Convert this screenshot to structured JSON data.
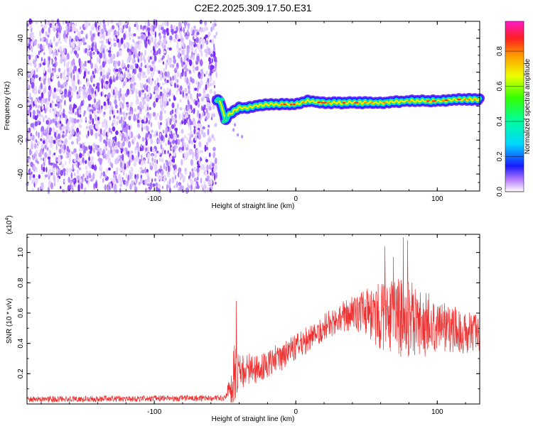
{
  "title": "C2E2.2025.309.17.50.E31",
  "chart_data": [
    {
      "type": "heatmap",
      "panel": "spectrogram",
      "xlabel": "Height of straight line (km)",
      "ylabel": "Frequency (Hz)",
      "xlim": [
        -190,
        130
      ],
      "ylim": [
        -50,
        50
      ],
      "xticks": [
        -100,
        0,
        100
      ],
      "xtick_labels": [
        "-100",
        "0",
        "100"
      ],
      "yticks": [
        -40,
        -20,
        0,
        20,
        40
      ],
      "ytick_labels": [
        "-40",
        "-20",
        "0",
        "20",
        "40"
      ],
      "noise_region_x": [
        -190,
        -56
      ],
      "ridge": {
        "x": [
          -56,
          -53,
          -50,
          -47,
          -44,
          -40,
          -35,
          -30,
          -20,
          -10,
          0,
          8,
          20,
          40,
          60,
          80,
          100,
          115,
          130
        ],
        "frequency": [
          4,
          2,
          -8,
          -5,
          -3,
          -1,
          -1,
          0,
          1,
          1,
          1,
          3,
          2,
          2,
          2,
          3,
          3,
          4,
          4
        ]
      },
      "colorbar": {
        "label": "Normalized spectral amplitude",
        "range": [
          0,
          0.97
        ],
        "ticks": [
          0.0,
          0.2,
          0.4,
          0.6,
          0.8
        ],
        "tick_labels": [
          "0.0",
          "0.2",
          "0.4",
          "0.6",
          "0.8"
        ]
      },
      "grid": false
    },
    {
      "type": "line",
      "panel": "snr",
      "xlabel": "Height of straight line (km)",
      "ylabel": "SNR (10 * v/v)",
      "yscale_label": "(x10",
      "yscale_exp": "4",
      "xlim": [
        -190,
        130
      ],
      "ylim": [
        0,
        1.12
      ],
      "xticks": [
        -100,
        0,
        100
      ],
      "xtick_labels": [
        "-100",
        "0",
        "100"
      ],
      "yticks": [
        0.2,
        0.4,
        0.6,
        0.8,
        1.0
      ],
      "ytick_labels": [
        "0.2",
        "0.4",
        "0.6",
        "0.8",
        "1.0"
      ],
      "envelope": {
        "x": [
          -190,
          -50,
          -45,
          -43,
          -40,
          -30,
          -20,
          -10,
          0,
          10,
          20,
          30,
          40,
          50,
          60,
          70,
          80,
          90,
          100,
          110,
          120,
          130
        ],
        "mean": [
          0.03,
          0.04,
          0.12,
          0.28,
          0.22,
          0.23,
          0.27,
          0.31,
          0.37,
          0.44,
          0.51,
          0.56,
          0.59,
          0.6,
          0.58,
          0.57,
          0.56,
          0.53,
          0.52,
          0.5,
          0.47,
          0.45
        ],
        "spread": [
          0.02,
          0.02,
          0.12,
          0.25,
          0.13,
          0.1,
          0.1,
          0.09,
          0.09,
          0.09,
          0.09,
          0.1,
          0.12,
          0.16,
          0.22,
          0.27,
          0.26,
          0.22,
          0.18,
          0.16,
          0.14,
          0.14
        ]
      },
      "peaks": [
        {
          "x": -42,
          "y": 0.68
        },
        {
          "x": 63,
          "y": 1.04
        },
        {
          "x": 69,
          "y": 0.97
        },
        {
          "x": 76,
          "y": 1.1
        },
        {
          "x": 79,
          "y": 1.08
        }
      ],
      "color": "#ee3030",
      "grid": false
    }
  ]
}
